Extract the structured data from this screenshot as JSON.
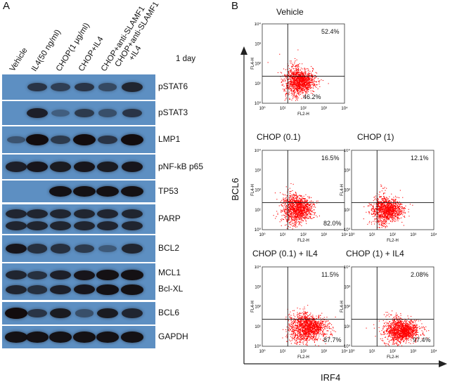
{
  "panel_a": {
    "letter": "A",
    "lanes": [
      "Vehicle",
      "IL4(50 ng/ml)",
      "CHOP(1 μg/ml)",
      "CHOP+IL4",
      "CHOP+anti-SLAMF1",
      "CHOP+anti-SLAMF1 +IL4"
    ],
    "lane_line2": "+IL4",
    "lane_line1": "CHOP+anti-SLAMF1",
    "time_label": "1 day",
    "blots": [
      {
        "label": "pSTAT6",
        "intensity": [
          0.0,
          0.55,
          0.45,
          0.55,
          0.35,
          0.7
        ]
      },
      {
        "label": "pSTAT3",
        "intensity": [
          0.0,
          0.75,
          0.15,
          0.5,
          0.3,
          0.55
        ]
      },
      {
        "label": "LMP1",
        "intensity": [
          0.25,
          0.95,
          0.5,
          1.0,
          0.55,
          1.0
        ]
      },
      {
        "label": "pNF-kB p65",
        "intensity": [
          0.75,
          0.85,
          0.8,
          0.85,
          0.8,
          0.85
        ]
      },
      {
        "label": "TP53",
        "intensity": [
          0.0,
          0.0,
          0.9,
          0.9,
          0.9,
          0.9
        ]
      },
      {
        "label": "PARP",
        "intensity": [
          0.7,
          0.7,
          0.7,
          0.7,
          0.7,
          0.7
        ]
      },
      {
        "label": "BCL2",
        "intensity": [
          0.85,
          0.6,
          0.6,
          0.5,
          0.2,
          0.7
        ]
      },
      {
        "label": "MCL1",
        "label2": "Bcl-XL",
        "intensity": [
          0.7,
          0.6,
          0.75,
          0.85,
          0.9,
          0.9
        ]
      },
      {
        "label": "BCL6",
        "intensity": [
          0.95,
          0.55,
          0.8,
          0.3,
          0.8,
          0.7
        ]
      },
      {
        "label": "GAPDH",
        "intensity": [
          0.9,
          0.9,
          0.9,
          0.9,
          0.9,
          0.9
        ]
      }
    ]
  },
  "panel_b": {
    "letter": "B",
    "y_axis_label": "BCL6",
    "x_axis_label": "IRF4",
    "plot_y_axis": "FL4-H",
    "plot_x_axis": "FL2-H",
    "ticks": [
      "10⁰",
      "10¹",
      "10²",
      "10³",
      "10⁴"
    ],
    "plots": [
      {
        "title": "Vehicle",
        "upper_right": "52.4%",
        "lower_right": "46.2%"
      },
      {
        "title": "CHOP (0.1)",
        "upper_right": "16.5%",
        "lower_right": "82.0%"
      },
      {
        "title": "CHOP (1)",
        "upper_right": "12.1%",
        "lower_right": ""
      },
      {
        "title": "CHOP (0.1) + IL4",
        "upper_right": "11.5%",
        "lower_right": "87.7%"
      },
      {
        "title": "CHOP (1) + IL4",
        "upper_right": "2.08%",
        "lower_right": "97.4%"
      }
    ],
    "colors": {
      "dots": "#ff0000",
      "axis": "#222222"
    }
  }
}
